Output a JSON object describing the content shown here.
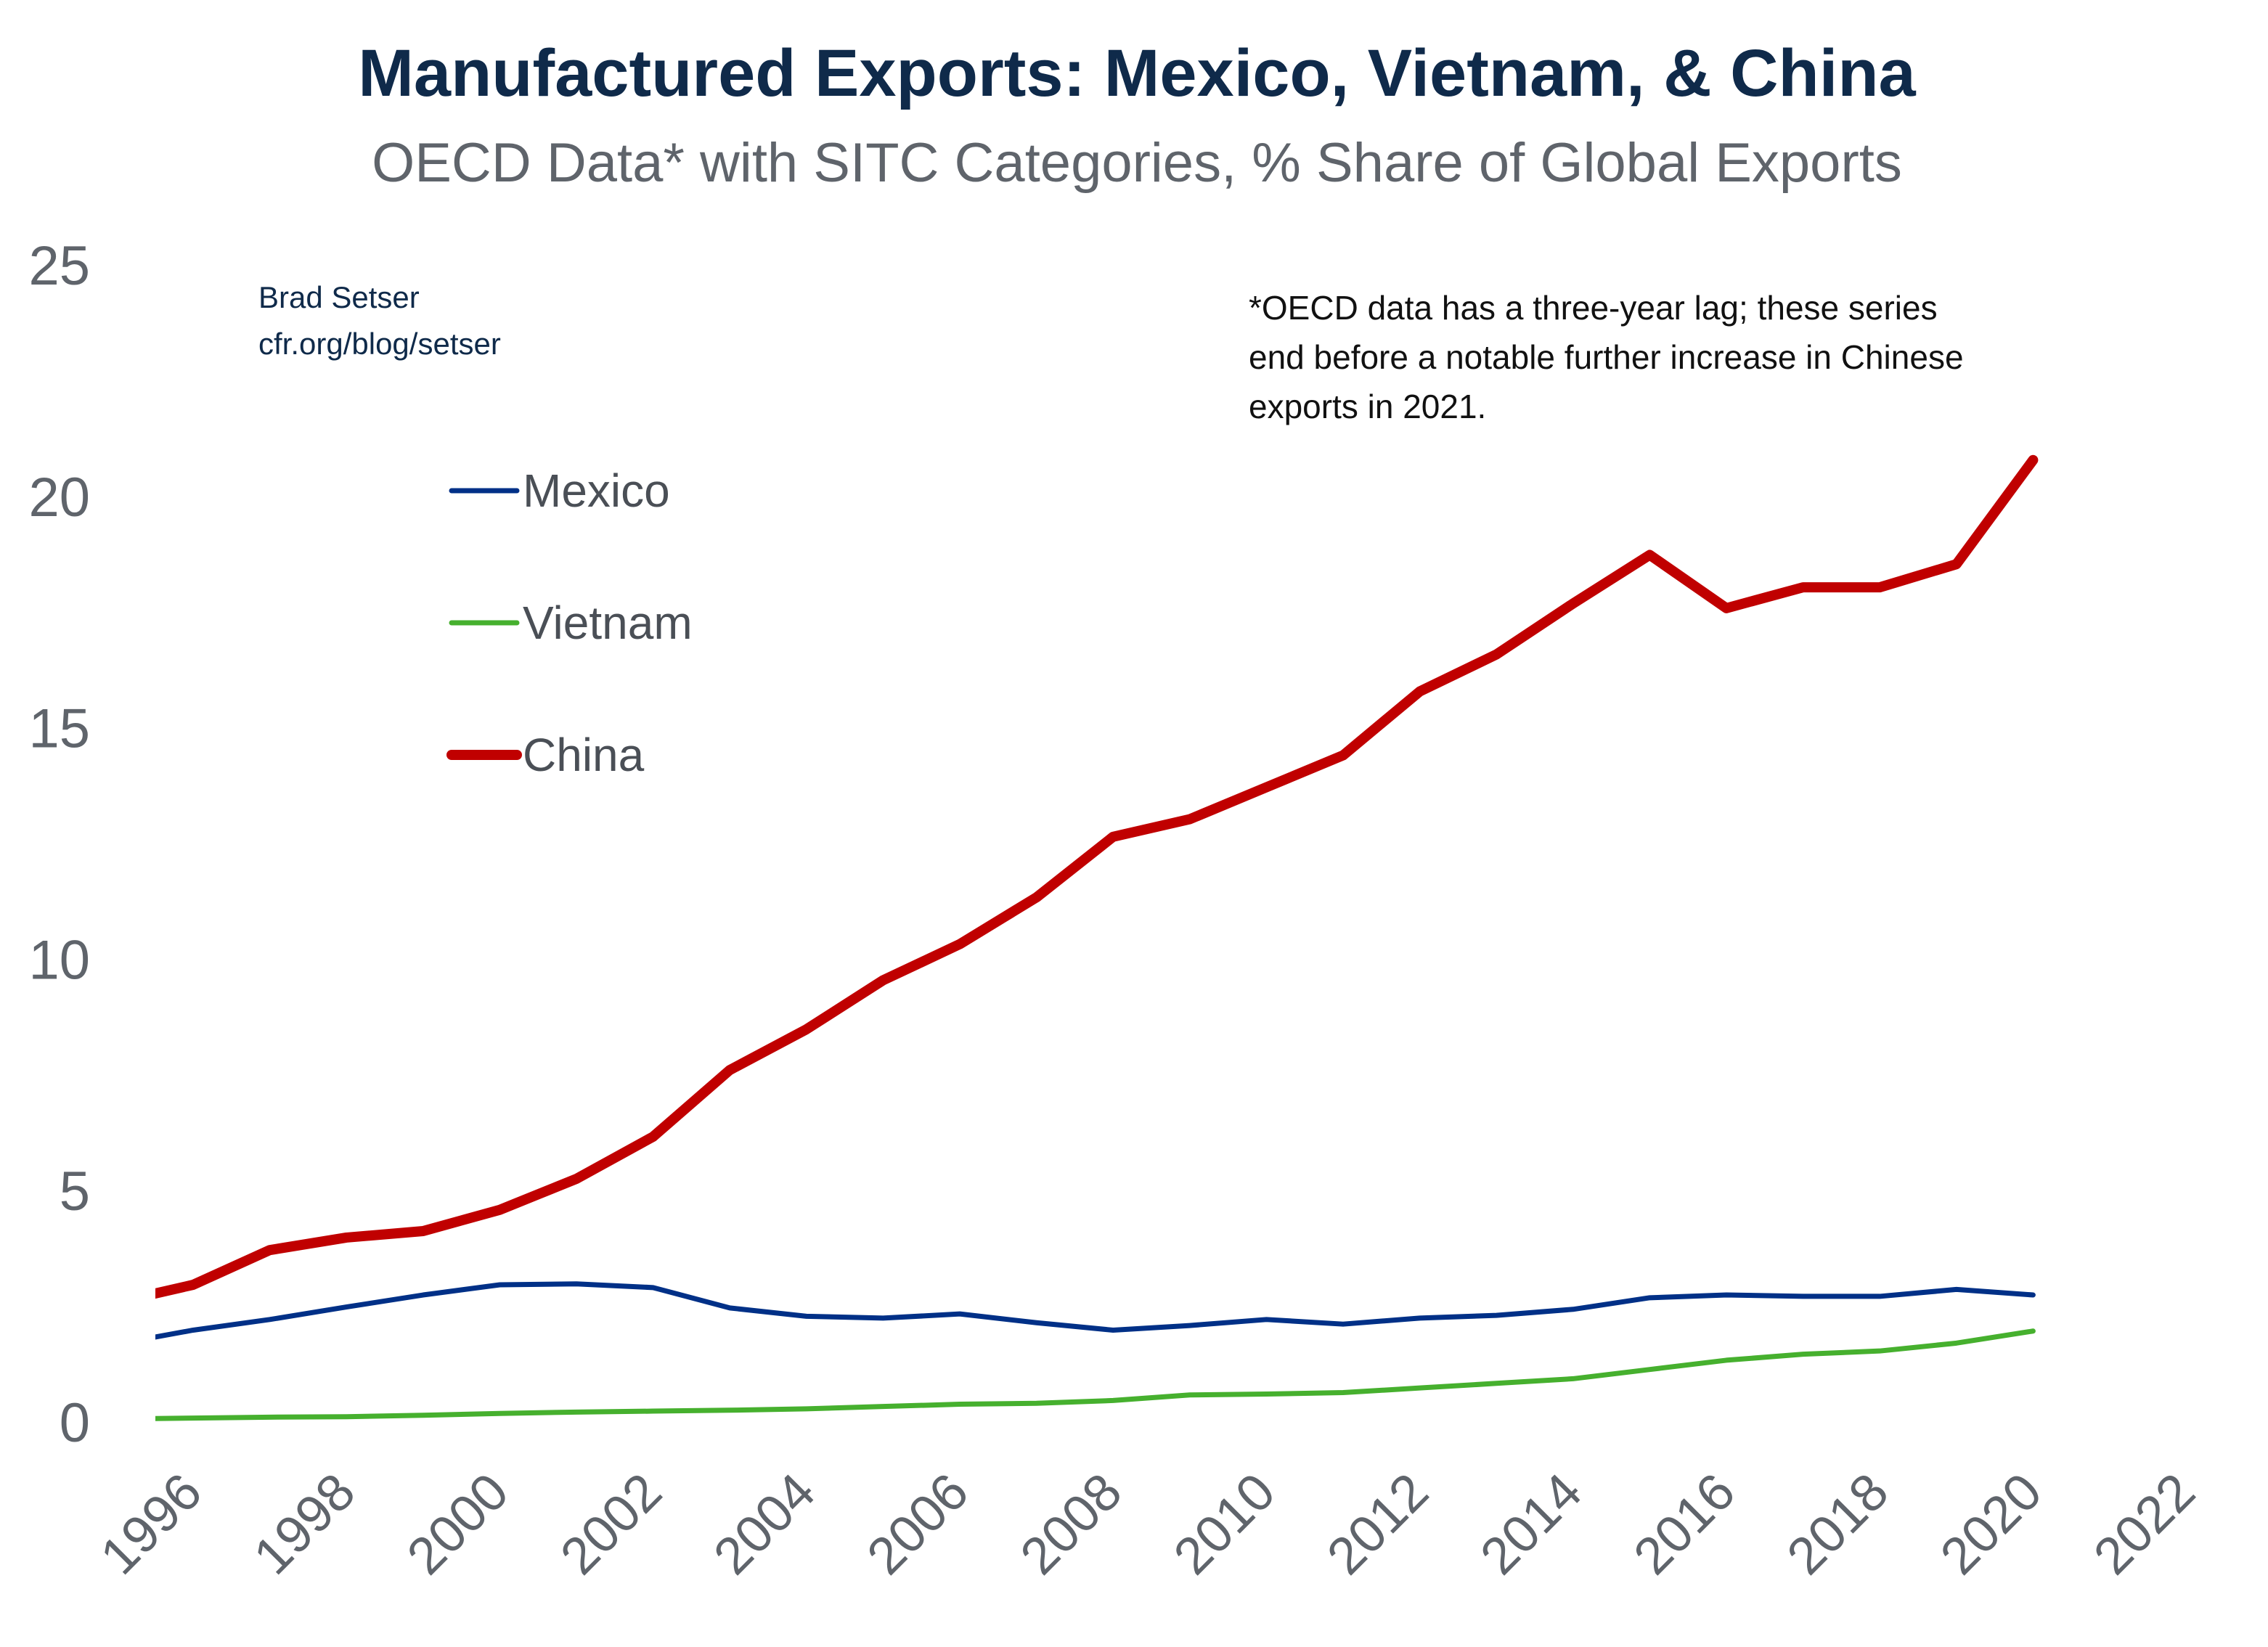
{
  "chart_data": {
    "type": "line",
    "title": "Manufactured Exports: Mexico, Vietnam, & China",
    "subtitle": "OECD Data* with SITC Categories, % Share of Global Exports",
    "xlabel": "",
    "ylabel": "",
    "xlim": [
      1995.5,
      2022
    ],
    "ylim": [
      0,
      25
    ],
    "x_ticks": [
      "1996",
      "1998",
      "2000",
      "2002",
      "2004",
      "2006",
      "2008",
      "2010",
      "2012",
      "2014",
      "2016",
      "2018",
      "2020",
      "2022"
    ],
    "y_ticks": [
      "0",
      "5",
      "10",
      "15",
      "20",
      "25"
    ],
    "grid": false,
    "legend_position": "upper-left",
    "x": [
      1995,
      1996,
      1997,
      1998,
      1999,
      2000,
      2001,
      2002,
      2003,
      2004,
      2005,
      2006,
      2007,
      2008,
      2009,
      2010,
      2011,
      2012,
      2013,
      2014,
      2015,
      2016,
      2017,
      2018,
      2019,
      2020
    ],
    "series": [
      {
        "name": "Mexico",
        "color": "#003087",
        "values": [
          1.7,
          2.0,
          2.23,
          2.5,
          2.76,
          2.98,
          3.0,
          2.92,
          2.48,
          2.3,
          2.26,
          2.35,
          2.16,
          2.0,
          2.1,
          2.23,
          2.13,
          2.26,
          2.32,
          2.45,
          2.7,
          2.76,
          2.73,
          2.73,
          2.88,
          2.76
        ]
      },
      {
        "name": "Vietnam",
        "color": "#46b02e",
        "values": [
          0.08,
          0.1,
          0.12,
          0.13,
          0.16,
          0.2,
          0.23,
          0.25,
          0.27,
          0.3,
          0.35,
          0.4,
          0.42,
          0.48,
          0.6,
          0.62,
          0.65,
          0.75,
          0.85,
          0.95,
          1.15,
          1.35,
          1.48,
          1.55,
          1.72,
          1.98
        ]
      },
      {
        "name": "China",
        "color": "#c00000",
        "values": [
          2.6,
          2.98,
          3.73,
          4.0,
          4.14,
          4.6,
          5.27,
          6.18,
          7.62,
          8.5,
          9.56,
          10.34,
          11.35,
          12.66,
          13.04,
          13.73,
          14.42,
          15.8,
          16.6,
          17.7,
          18.75,
          17.6,
          18.05,
          18.05,
          18.55,
          20.8
        ]
      }
    ],
    "annotations": {
      "author": "Brad Setser",
      "source_link": "cfr.org/blog/setser",
      "note": [
        "*OECD data has a three-year lag; these series",
        "end before a notable further increase in Chinese",
        "exports in 2021."
      ]
    }
  }
}
